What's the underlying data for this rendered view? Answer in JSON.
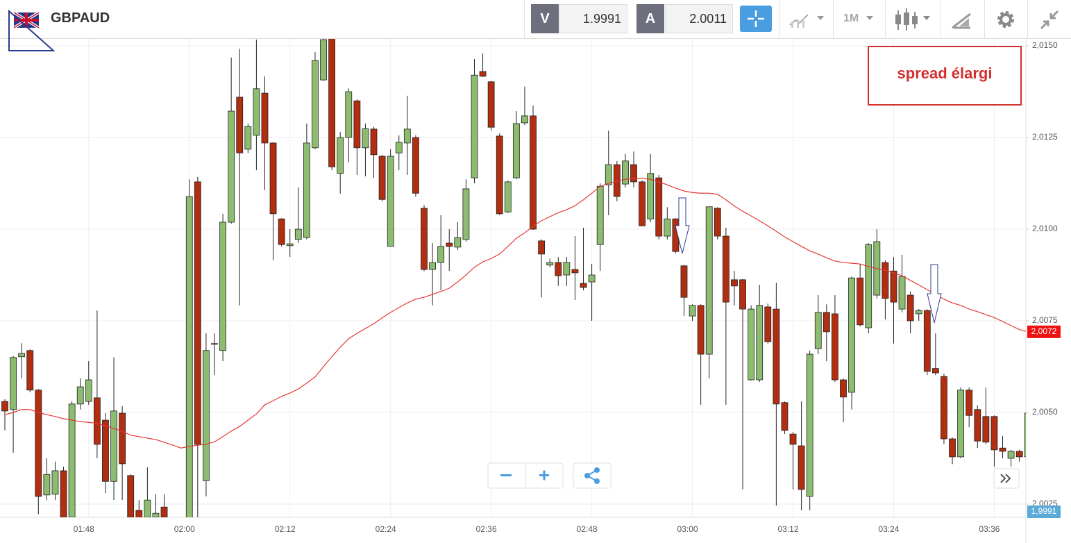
{
  "header": {
    "symbol": "GBPAUD",
    "bid_label": "V",
    "bid": "1.9991",
    "ask_label": "A",
    "ask": "2.0011",
    "timeframe": "1M"
  },
  "chart_data": {
    "type": "candlestick",
    "annotation": "spread élargi",
    "categories": [
      null,
      null,
      null,
      null,
      null,
      null,
      null,
      null,
      null,
      null,
      "01:48",
      null,
      null,
      null,
      null,
      null,
      null,
      null,
      null,
      null,
      null,
      null,
      "02:00",
      null,
      null,
      null,
      null,
      null,
      null,
      null,
      null,
      null,
      null,
      null,
      "02:12",
      null,
      null,
      null,
      null,
      null,
      null,
      null,
      null,
      null,
      null,
      null,
      "02:24",
      null,
      null,
      null,
      null,
      null,
      null,
      null,
      null,
      null,
      null,
      null,
      "02:36",
      null,
      null,
      null,
      null,
      null,
      null,
      null,
      null,
      null,
      null,
      null,
      "02:48",
      null,
      null,
      null,
      null,
      null,
      null,
      null,
      null,
      null,
      null,
      null,
      "03:00",
      null,
      null,
      null,
      null,
      null,
      null,
      null,
      null,
      null,
      null,
      null,
      "03:12",
      null,
      null,
      null,
      null,
      null,
      null,
      null,
      null,
      null,
      null,
      null,
      "03:24",
      null,
      null,
      null,
      null,
      null,
      null,
      null,
      null,
      null,
      null,
      null,
      "03:36",
      null,
      null,
      null,
      null
    ],
    "open": [
      2.0053,
      2.00508,
      2.00652,
      2.00669,
      2.00561,
      2.00275,
      2.00277,
      2.00341,
      2.00214,
      2.00523,
      2.0053,
      2.0054,
      2.00479,
      2.00312,
      2.00498,
      2.00328,
      2.00233,
      2.00214,
      2.00214,
      2.00242,
      2.002,
      2.0019,
      2.002,
      2.01129,
      2.00314,
      2.00688,
      2.00669,
      2.01019,
      2.0136,
      2.01218,
      2.01256,
      2.01371,
      2.01235,
      2.01028,
      2.00955,
      2.00972,
      2.00977,
      2.01222,
      2.01407,
      2.0152,
      2.01152,
      2.0125,
      2.0135,
      2.01222,
      2.01273,
      2.01199,
      2.00953,
      2.01208,
      2.01235,
      2.0125,
      2.01057,
      2.0089,
      2.00909,
      2.00962,
      2.00951,
      2.00972,
      2.0114,
      2.0143,
      2.01402,
      2.01254,
      2.01047,
      2.0114,
      2.0129,
      2.01309,
      2.00968,
      2.00902,
      2.00909,
      2.00875,
      2.0089,
      2.00852,
      2.00856,
      2.00958,
      2.01121,
      2.01176,
      2.01123,
      2.01176,
      2.01129,
      2.01028,
      2.0114,
      2.00981,
      2.01028,
      2.009,
      2.00763,
      2.00792,
      2.00659,
      2.01057,
      2.00981,
      2.00862,
      2.00862,
      2.00589,
      2.00589,
      2.00788,
      2.00782,
      2.00527,
      2.00441,
      2.00409,
      2.00271,
      2.00674,
      2.00773,
      2.00769,
      2.00589,
      2.00555,
      2.00867,
      2.00731,
      2.0082,
      2.00909,
      2.00886,
      2.00782,
      2.0082,
      2.00769,
      2.00778,
      2.0062,
      2.00598,
      2.00428,
      2.00379,
      2.00561,
      2.00508,
      2.00489,
      2.00489,
      2.00403,
      2.00375,
      2.00394,
      2.00379
    ],
    "high": [
      2.00536,
      2.00654,
      2.00689,
      2.00672,
      2.00564,
      2.00375,
      2.00366,
      2.00352,
      2.0053,
      2.00593,
      2.0064,
      2.00778,
      2.00498,
      2.0065,
      2.00517,
      2.00331,
      2.00261,
      2.0035,
      2.00277,
      2.00277,
      2.0021,
      2.0021,
      2.01136,
      2.01142,
      2.00716,
      2.00716,
      2.01042,
      2.01468,
      2.01492,
      2.01288,
      2.01517,
      2.01417,
      2.01237,
      2.0103,
      2.01,
      2.01114,
      2.01288,
      2.01483,
      2.0152,
      2.0152,
      2.01265,
      2.01384,
      2.01354,
      2.01288,
      2.01279,
      2.01203,
      2.01218,
      2.01256,
      2.01364,
      2.01256,
      2.01066,
      2.00962,
      2.01038,
      2.01,
      2.01019,
      2.01136,
      2.01464,
      2.01479,
      2.01404,
      2.01261,
      2.01133,
      2.01322,
      2.01389,
      2.01337,
      2.00972,
      2.0092,
      2.00924,
      2.00924,
      2.00981,
      2.01004,
      2.00905,
      2.01125,
      2.01269,
      2.01186,
      2.01205,
      2.01212,
      2.01133,
      2.01205,
      2.01148,
      2.0106,
      2.0103,
      2.00903,
      2.00795,
      2.00795,
      2.01062,
      2.0106,
      2.01004,
      2.00886,
      2.00864,
      2.00792,
      2.00848,
      2.00797,
      2.00854,
      2.0053,
      2.00447,
      2.0053,
      2.00669,
      2.0082,
      2.00795,
      2.0082,
      2.00593,
      2.00871,
      2.00905,
      2.00962,
      2.01,
      2.00915,
      2.00924,
      2.0093,
      2.0083,
      2.00782,
      2.00782,
      2.00716,
      2.00606,
      2.00432,
      2.00568,
      2.00568,
      2.00519,
      2.00568,
      2.00492,
      2.00436,
      2.00398,
      2.00398,
      2.00508
    ],
    "low": [
      2.00451,
      2.0039,
      2.00593,
      2.00555,
      2.00223,
      2.00261,
      2.00261,
      2.00205,
      2.00205,
      2.00508,
      2.00521,
      2.00375,
      2.0028,
      2.00261,
      2.00261,
      2.00205,
      2.00167,
      2.00205,
      2.00205,
      2.00205,
      2.0018,
      2.0017,
      2.002,
      2.00205,
      2.00271,
      2.00602,
      2.0064,
      2.01015,
      2.00792,
      2.01208,
      2.01161,
      2.01106,
      2.00915,
      2.00953,
      2.00924,
      2.00962,
      2.00972,
      2.01218,
      2.01404,
      2.01161,
      2.01097,
      2.01182,
      2.01148,
      2.01144,
      2.0114,
      2.01076,
      2.00953,
      2.01161,
      2.01148,
      2.01088,
      2.00886,
      2.00792,
      2.00833,
      2.00886,
      2.00943,
      2.00966,
      2.01125,
      2.01415,
      2.01269,
      2.01038,
      2.01044,
      2.01136,
      2.01284,
      2.00998,
      2.00814,
      2.00896,
      2.00845,
      2.00845,
      2.00807,
      2.00833,
      2.0075,
      2.00886,
      2.01038,
      2.01076,
      2.01114,
      2.01114,
      2.01009,
      2.01019,
      2.00972,
      2.00972,
      2.00934,
      2.00763,
      2.0075,
      2.00521,
      2.00593,
      2.00972,
      2.00521,
      2.00792,
      2.0029,
      2.00587,
      2.00583,
      2.00688,
      2.00246,
      2.00441,
      2.0029,
      2.00233,
      2.00233,
      2.00659,
      2.0064,
      2.00583,
      2.00473,
      2.00508,
      2.00735,
      2.00716,
      2.00811,
      2.00754,
      2.00688,
      2.00773,
      2.00716,
      2.0075,
      2.00602,
      2.00602,
      2.00413,
      2.00359,
      2.00375,
      2.0046,
      2.00403,
      2.00413,
      2.00352,
      2.00375,
      2.00352,
      2.00366,
      2.00359
    ],
    "close": [
      2.00504,
      2.0065,
      2.00661,
      2.00561,
      2.00271,
      2.00331,
      2.00341,
      2.00214,
      2.00523,
      2.0057,
      2.00589,
      2.00413,
      2.00312,
      2.00504,
      2.0036,
      2.00214,
      2.00186,
      2.00261,
      2.00225,
      2.00214,
      2.0019,
      2.002,
      2.01089,
      2.00413,
      2.00669,
      2.00686,
      2.01019,
      2.01322,
      2.01208,
      2.0128,
      2.01383,
      2.01235,
      2.01042,
      2.00958,
      2.0096,
      2.01,
      2.01235,
      2.0146,
      2.01517,
      2.0117,
      2.0125,
      2.01375,
      2.01222,
      2.01274,
      2.01203,
      2.01081,
      2.01199,
      2.01237,
      2.01273,
      2.01098,
      2.0089,
      2.00909,
      2.00953,
      2.00953,
      2.00977,
      2.0111,
      2.0142,
      2.01417,
      2.01278,
      2.01042,
      2.01129,
      2.01288,
      2.01309,
      2.01,
      2.00932,
      2.00909,
      2.00873,
      2.00909,
      2.00881,
      2.00841,
      2.00875,
      2.01117,
      2.01176,
      2.01089,
      2.01186,
      2.01129,
      2.01009,
      2.01152,
      2.00981,
      2.01028,
      2.00939,
      2.00814,
      2.00792,
      2.00659,
      2.01061,
      2.00981,
      2.00801,
      2.00845,
      2.00782,
      2.00782,
      2.00792,
      2.00693,
      2.00523,
      2.00451,
      2.00413,
      2.0029,
      2.00659,
      2.00773,
      2.0072,
      2.00589,
      2.00542,
      2.00867,
      2.00739,
      2.00958,
      2.00966,
      2.00811,
      2.00801,
      2.00871,
      2.0075,
      2.00778,
      2.00612,
      2.00608,
      2.00428,
      2.00379,
      2.00561,
      2.00492,
      2.00422,
      2.00419,
      2.00398,
      2.00394,
      2.00394,
      2.00379,
      2.00498
    ],
    "ma": [
      2.00494,
      2.005,
      2.00508,
      2.00508,
      2.005,
      2.00494,
      2.00489,
      2.00483,
      2.00479,
      2.00475,
      2.00473,
      2.0047,
      2.00464,
      2.00456,
      2.00449,
      2.00438,
      2.00434,
      2.0043,
      2.00426,
      2.00419,
      2.00411,
      2.00403,
      2.00407,
      2.00411,
      2.00413,
      2.0042,
      2.00434,
      2.00449,
      2.00462,
      2.00479,
      2.00496,
      2.00521,
      2.00532,
      2.00544,
      2.00553,
      2.00564,
      2.0058,
      2.00597,
      2.00625,
      2.00652,
      2.00678,
      2.00701,
      2.00716,
      2.00729,
      2.00742,
      2.00758,
      2.00773,
      2.00786,
      2.00799,
      2.00809,
      2.00814,
      2.00822,
      2.0083,
      2.00839,
      2.00856,
      2.00875,
      2.00896,
      2.00911,
      2.0092,
      2.00932,
      2.00953,
      2.00975,
      2.0099,
      2.01008,
      2.01023,
      2.01034,
      2.01045,
      2.01053,
      2.01064,
      2.0108,
      2.01098,
      2.01117,
      2.01125,
      2.01131,
      2.01136,
      2.01138,
      2.01138,
      2.01136,
      2.01129,
      2.01121,
      2.01112,
      2.01104,
      2.011,
      2.01098,
      2.01098,
      2.01095,
      2.0108,
      2.01063,
      2.01049,
      2.01036,
      2.01023,
      2.01009,
      2.00994,
      2.00979,
      2.00966,
      2.00953,
      2.00941,
      2.00932,
      2.00922,
      2.00913,
      2.00909,
      2.00907,
      2.00905,
      2.00898,
      2.00892,
      2.00888,
      2.00881,
      2.00873,
      2.0086,
      2.00848,
      2.00835,
      2.00822,
      2.00809,
      2.00799,
      2.00792,
      2.00782,
      2.00775,
      2.00767,
      2.00759,
      2.00748,
      2.00737,
      2.00726,
      2.0072
    ],
    "up_color": "#8cbc6f",
    "down_color": "#b12e10",
    "ma_color": "#e53935",
    "ma_tag": {
      "value": 2.0072,
      "label": "2,0072"
    },
    "bid_tag": {
      "value": 1.9991,
      "label": "1,9991"
    },
    "ylim": [
      2.00214,
      2.01519
    ],
    "yticks": [
      {
        "value": 2.0025,
        "label": "2,0025"
      },
      {
        "value": 2.005,
        "label": "2,0050"
      },
      {
        "value": 2.0075,
        "label": "2,0075"
      },
      {
        "value": 2.01,
        "label": "2,0100"
      },
      {
        "value": 2.0125,
        "label": "2,0125"
      },
      {
        "value": 2.015,
        "label": "2,0150"
      }
    ],
    "grid": true
  }
}
